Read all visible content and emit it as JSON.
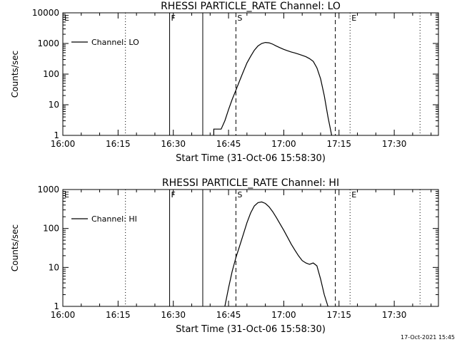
{
  "footer_timestamp": "17-Oct-2021 15:45",
  "chart_data": [
    {
      "type": "line",
      "title": "RHESSI PARTICLE_RATE Channel: LO",
      "xlabel": "Start Time (31-Oct-06 15:58:30)",
      "ylabel": "Counts/sec",
      "yscale": "log",
      "xlim": [
        "16:00",
        "17:42"
      ],
      "ylim": [
        1,
        10000
      ],
      "xticks": [
        "16:00",
        "16:15",
        "16:30",
        "16:45",
        "17:00",
        "17:15",
        "17:30"
      ],
      "yticks": [
        "1",
        "10",
        "100",
        "1000",
        "10000"
      ],
      "legend": {
        "label": "Channel: LO",
        "placement": "top-left"
      },
      "markers": [
        {
          "time": "16:00",
          "style": "dotted",
          "label": "E"
        },
        {
          "time": "16:17",
          "style": "dotted",
          "label": ""
        },
        {
          "time": "16:29",
          "style": "solid",
          "label": "F"
        },
        {
          "time": "16:38",
          "style": "solid",
          "label": ""
        },
        {
          "time": "16:47",
          "style": "dashed",
          "label": "S"
        },
        {
          "time": "17:14",
          "style": "dashed",
          "label": ""
        },
        {
          "time": "17:18",
          "style": "dotted",
          "label": "E"
        },
        {
          "time": "17:37",
          "style": "dotted",
          "label": ""
        }
      ],
      "series": [
        {
          "name": "Channel: LO",
          "points": [
            [
              "16:41",
              1
            ],
            [
              "16:41",
              1.6
            ],
            [
              "16:43",
              1.6
            ],
            [
              "16:44",
              3
            ],
            [
              "16:45",
              7
            ],
            [
              "16:46",
              15
            ],
            [
              "16:47",
              30
            ],
            [
              "16:48",
              60
            ],
            [
              "16:49",
              120
            ],
            [
              "16:50",
              230
            ],
            [
              "16:51",
              380
            ],
            [
              "16:52",
              600
            ],
            [
              "16:53",
              830
            ],
            [
              "16:54",
              1000
            ],
            [
              "16:55",
              1080
            ],
            [
              "16:56",
              1050
            ],
            [
              "16:57",
              950
            ],
            [
              "16:58",
              820
            ],
            [
              "16:59",
              720
            ],
            [
              "17:00",
              640
            ],
            [
              "17:01",
              580
            ],
            [
              "17:02",
              530
            ],
            [
              "17:03",
              490
            ],
            [
              "17:04",
              450
            ],
            [
              "17:05",
              410
            ],
            [
              "17:06",
              370
            ],
            [
              "17:07",
              320
            ],
            [
              "17:08",
              260
            ],
            [
              "17:09",
              160
            ],
            [
              "17:10",
              70
            ],
            [
              "17:11",
              20
            ],
            [
              "17:12",
              4
            ],
            [
              "17:13",
              1
            ]
          ]
        }
      ]
    },
    {
      "type": "line",
      "title": "RHESSI PARTICLE_RATE Channel: HI",
      "xlabel": "Start Time (31-Oct-06 15:58:30)",
      "ylabel": "Counts/sec",
      "yscale": "log",
      "xlim": [
        "16:00",
        "17:42"
      ],
      "ylim": [
        1,
        1000
      ],
      "xticks": [
        "16:00",
        "16:15",
        "16:30",
        "16:45",
        "17:00",
        "17:15",
        "17:30"
      ],
      "yticks": [
        "1",
        "10",
        "100",
        "1000"
      ],
      "legend": {
        "label": "Channel: HI",
        "placement": "top-left"
      },
      "markers": [
        {
          "time": "16:00",
          "style": "dotted",
          "label": "E"
        },
        {
          "time": "16:17",
          "style": "dotted",
          "label": ""
        },
        {
          "time": "16:29",
          "style": "solid",
          "label": "F"
        },
        {
          "time": "16:38",
          "style": "solid",
          "label": ""
        },
        {
          "time": "16:47",
          "style": "dashed",
          "label": "S"
        },
        {
          "time": "17:14",
          "style": "dashed",
          "label": ""
        },
        {
          "time": "17:18",
          "style": "dotted",
          "label": "E"
        },
        {
          "time": "17:37",
          "style": "dotted",
          "label": ""
        }
      ],
      "series": [
        {
          "name": "Channel: HI",
          "points": [
            [
              "16:44",
              1
            ],
            [
              "16:45",
              3
            ],
            [
              "16:46",
              8
            ],
            [
              "16:47",
              18
            ],
            [
              "16:48",
              35
            ],
            [
              "16:49",
              70
            ],
            [
              "16:50",
              140
            ],
            [
              "16:51",
              250
            ],
            [
              "16:52",
              380
            ],
            [
              "16:53",
              460
            ],
            [
              "16:54",
              480
            ],
            [
              "16:55",
              440
            ],
            [
              "16:56",
              360
            ],
            [
              "16:57",
              270
            ],
            [
              "16:58",
              190
            ],
            [
              "16:59",
              130
            ],
            [
              "17:00",
              90
            ],
            [
              "17:01",
              60
            ],
            [
              "17:02",
              40
            ],
            [
              "17:03",
              28
            ],
            [
              "17:04",
              20
            ],
            [
              "17:05",
              15
            ],
            [
              "17:06",
              13
            ],
            [
              "17:07",
              12
            ],
            [
              "17:08",
              13
            ],
            [
              "17:09",
              11
            ],
            [
              "17:10",
              5
            ],
            [
              "17:11",
              2
            ],
            [
              "17:12",
              1
            ]
          ]
        }
      ]
    }
  ]
}
